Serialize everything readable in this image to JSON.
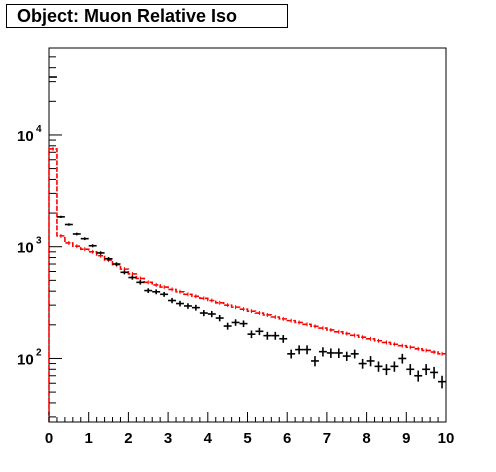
{
  "chart_data": {
    "type": "line",
    "title": "Object: Muon Relative Iso",
    "xlabel": "",
    "ylabel": "",
    "xlim": [
      0,
      10
    ],
    "ylim": [
      27,
      60000
    ],
    "yscale": "log",
    "bin_width": 0.2,
    "grid": false,
    "legend": "none",
    "xticks": [
      "0",
      "1",
      "2",
      "3",
      "4",
      "5",
      "6",
      "7",
      "8",
      "9",
      "10"
    ],
    "yticks": [
      {
        "value": 100,
        "base": "10",
        "exp": "2"
      },
      {
        "value": 1000,
        "base": "10",
        "exp": "3"
      },
      {
        "value": 10000,
        "base": "10",
        "exp": "4"
      }
    ],
    "series": [
      {
        "kind": "points-with-errors",
        "color": "#000000",
        "x": [
          0.1,
          0.3,
          0.5,
          0.7,
          0.9,
          1.1,
          1.3,
          1.5,
          1.7,
          1.9,
          2.1,
          2.3,
          2.5,
          2.7,
          2.9,
          3.1,
          3.3,
          3.5,
          3.7,
          3.9,
          4.1,
          4.3,
          4.5,
          4.7,
          4.9,
          5.1,
          5.3,
          5.5,
          5.7,
          5.9,
          6.1,
          6.3,
          6.5,
          6.7,
          6.9,
          7.1,
          7.3,
          7.5,
          7.7,
          7.9,
          8.1,
          8.3,
          8.5,
          8.7,
          8.9,
          9.1,
          9.3,
          9.5,
          9.7,
          9.9
        ],
        "y": [
          33000,
          1850,
          1580,
          1300,
          1180,
          1020,
          880,
          780,
          700,
          590,
          530,
          480,
          405,
          395,
          375,
          330,
          310,
          295,
          285,
          255,
          250,
          230,
          195,
          210,
          205,
          165,
          175,
          160,
          160,
          150,
          110,
          120,
          120,
          95,
          115,
          112,
          112,
          105,
          110,
          90,
          95,
          85,
          80,
          85,
          100,
          80,
          70,
          80,
          75,
          62
        ],
        "err": [
          180,
          43,
          40,
          36,
          34,
          32,
          30,
          28,
          26,
          24,
          23,
          22,
          20,
          20,
          19,
          18,
          18,
          17,
          17,
          16,
          16,
          15,
          14,
          14,
          14,
          13,
          13,
          13,
          13,
          12,
          10,
          11,
          11,
          10,
          11,
          11,
          11,
          10,
          10,
          9,
          10,
          9,
          9,
          9,
          10,
          9,
          8,
          9,
          9,
          8
        ]
      },
      {
        "kind": "histogram-step",
        "color": "#ff0000",
        "y": [
          7500,
          1250,
          1080,
          1010,
          950,
          900,
          830,
          760,
          690,
          630,
          570,
          520,
          480,
          455,
          435,
          415,
          395,
          375,
          360,
          345,
          330,
          315,
          300,
          288,
          276,
          265,
          255,
          245,
          235,
          226,
          218,
          210,
          202,
          194,
          187,
          180,
          173,
          167,
          161,
          155,
          150,
          144,
          139,
          134,
          130,
          126,
          122,
          118,
          114,
          110
        ]
      }
    ]
  }
}
